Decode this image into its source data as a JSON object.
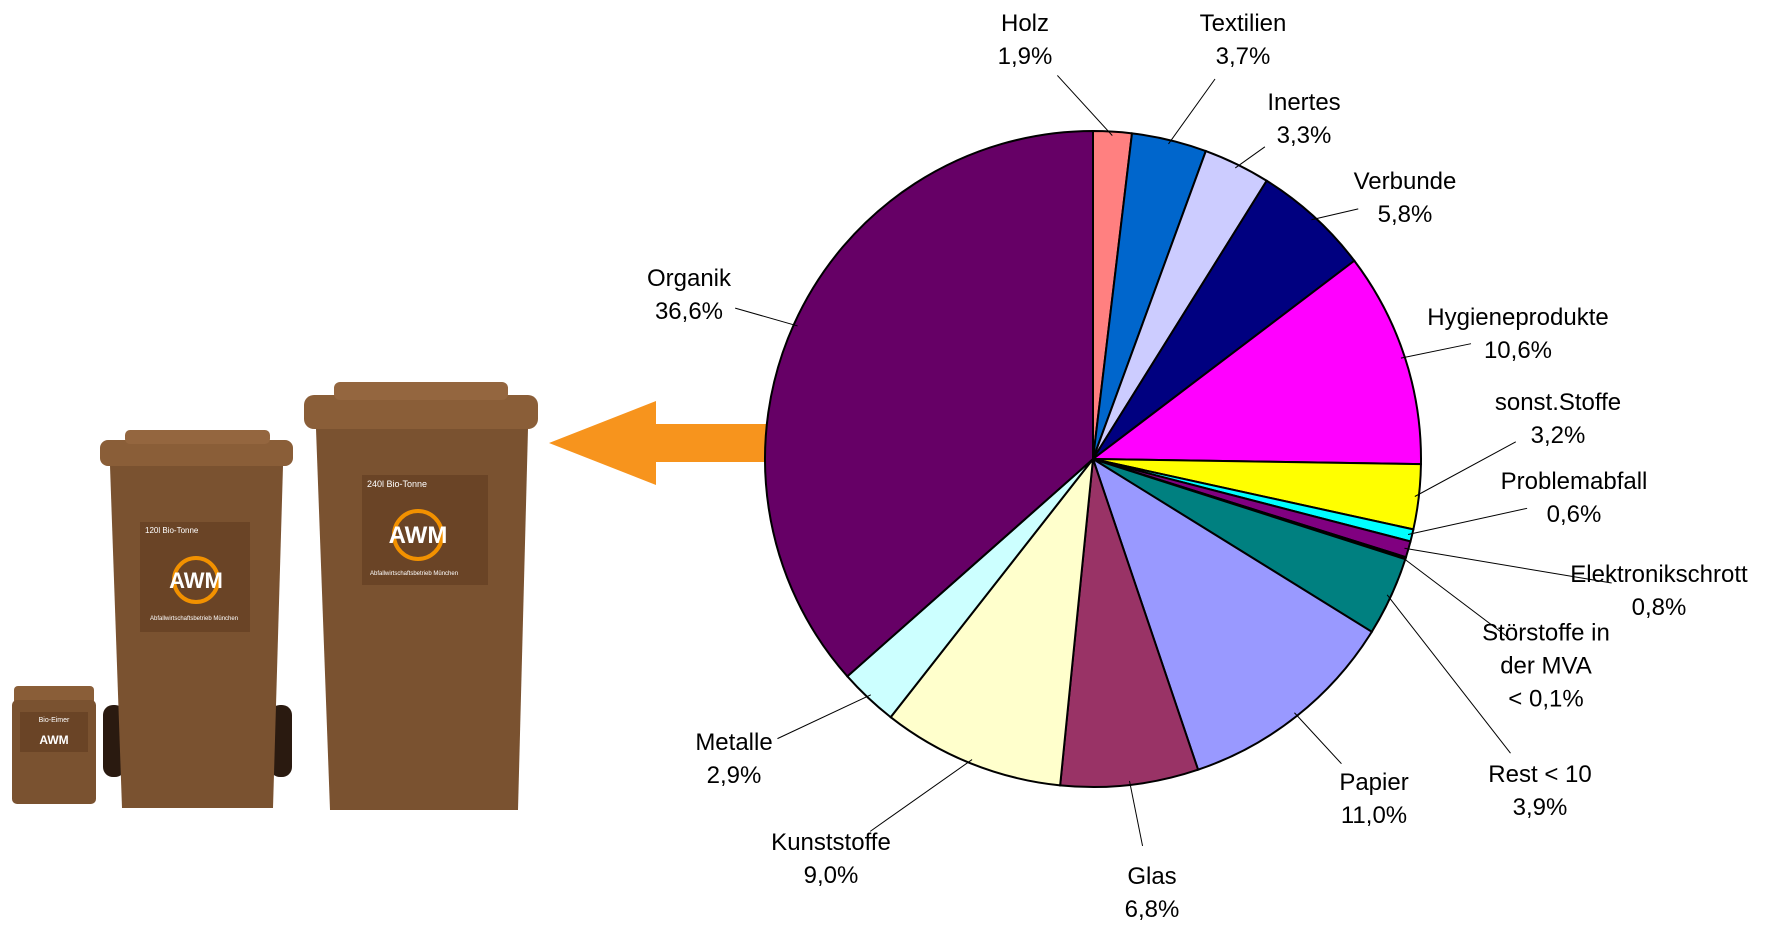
{
  "chart_data": {
    "type": "pie",
    "categories": [
      "Holz",
      "Textilien",
      "Inertes",
      "Verbunde",
      "Hygieneprodukte",
      "sonst.Stoffe",
      "Problemabfall",
      "Elektronikschrott",
      "Störstoffe in der MVA",
      "Rest < 10",
      "Papier",
      "Glas",
      "Kunststoffe",
      "Metalle",
      "Organik"
    ],
    "values": [
      1.9,
      3.7,
      3.3,
      5.8,
      10.6,
      3.2,
      0.6,
      0.8,
      0.1,
      3.9,
      11.0,
      6.8,
      9.0,
      2.9,
      36.6
    ],
    "value_labels": [
      "1,9%",
      "3,7%",
      "3,3%",
      "5,8%",
      "10,6%",
      "3,2%",
      "0,6%",
      "0,8%",
      "< 0,1%",
      "3,9%",
      "11,0%",
      "6,8%",
      "9,0%",
      "2,9%",
      "36,6%"
    ],
    "colors": [
      "#ff8080",
      "#0066cc",
      "#ccccff",
      "#000080",
      "#ff00ff",
      "#ffff00",
      "#00ffff",
      "#800080",
      "#800000",
      "#008080",
      "#9999ff",
      "#993366",
      "#ffffcc",
      "#ccffff",
      "#660066"
    ]
  },
  "illustration": {
    "logo": "AWM",
    "company": "Abfallwirtschaftsbetrieb München",
    "small_bin": "Bio-Eimer",
    "medium_bin": "120l Bio-Tonne",
    "large_bin": "240l Bio-Tonne"
  }
}
